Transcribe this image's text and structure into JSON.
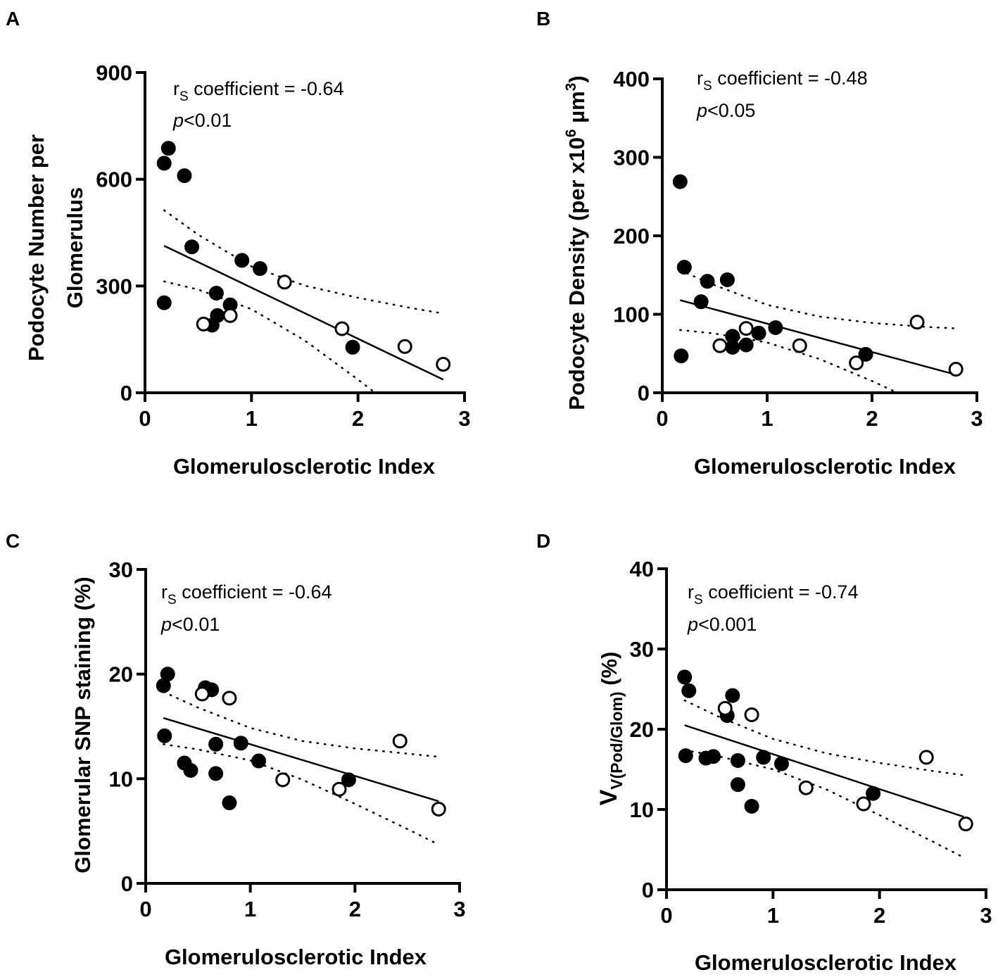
{
  "chart_data": [
    {
      "panel": "A",
      "type": "scatter",
      "xlabel": "Glomerulosclerotic Index",
      "ylabel_lines": [
        "Podocyte Number per",
        "Glomerulus"
      ],
      "xlim": [
        0,
        3
      ],
      "ylim": [
        0,
        900
      ],
      "xticks": [
        "0",
        "1",
        "2",
        "3"
      ],
      "xtick_values": [
        0,
        1,
        2,
        3
      ],
      "yticks": [
        "0",
        "300",
        "600",
        "900"
      ],
      "ytick_values": [
        0,
        300,
        600,
        900
      ],
      "annotation": {
        "r": "r",
        "r_sub": "S",
        "coef": " coefficient = -0.64",
        "p": "p",
        "p_value": "<0.01"
      },
      "series": [
        {
          "name": "filled",
          "fill": "#000000",
          "points": [
            [
              0.22,
              687
            ],
            [
              0.18,
              645
            ],
            [
              0.37,
              610
            ],
            [
              0.44,
              410
            ],
            [
              0.91,
              372
            ],
            [
              1.08,
              349
            ],
            [
              0.67,
              280
            ],
            [
              0.18,
              253
            ],
            [
              0.8,
              247
            ],
            [
              0.68,
              217
            ],
            [
              0.63,
              190
            ],
            [
              1.95,
              128
            ]
          ]
        },
        {
          "name": "open",
          "fill": "#ffffff",
          "points": [
            [
              0.55,
              193
            ],
            [
              0.8,
              217
            ],
            [
              1.31,
              311
            ],
            [
              1.85,
              180
            ],
            [
              2.44,
              130
            ],
            [
              2.8,
              80
            ]
          ]
        }
      ],
      "regression": {
        "x": [
          0.18,
          2.8
        ],
        "y": [
          413,
          37
        ]
      },
      "confidence_band": {
        "x": [
          0.18,
          0.5,
          1.0,
          1.5,
          2.0,
          2.5,
          2.8
        ],
        "upper": [
          513,
          444,
          355,
          301,
          267,
          238,
          223
        ],
        "lower": [
          313,
          290,
          235,
          147,
          37,
          -78,
          -149
        ]
      }
    },
    {
      "panel": "B",
      "type": "scatter",
      "xlabel": "Glomerulosclerotic Index",
      "ylabel_parts": {
        "main": "Podocyte Density (per x10",
        "sup1": "6",
        "unit": " µm",
        "sup2": "3",
        "close": ")"
      },
      "xlim": [
        0,
        3
      ],
      "ylim": [
        0,
        400
      ],
      "xticks": [
        "0",
        "1",
        "2",
        "3"
      ],
      "xtick_values": [
        0,
        1,
        2,
        3
      ],
      "yticks": [
        "0",
        "100",
        "200",
        "300",
        "400"
      ],
      "ytick_values": [
        0,
        100,
        200,
        300,
        400
      ],
      "annotation": {
        "r": "r",
        "r_sub": "S",
        "coef": " coefficient = -0.48",
        "p": "p",
        "p_value": "<0.05"
      },
      "series": [
        {
          "name": "filled",
          "fill": "#000000",
          "points": [
            [
              0.17,
              269
            ],
            [
              0.21,
              160
            ],
            [
              0.43,
              142
            ],
            [
              0.62,
              144
            ],
            [
              0.37,
              116
            ],
            [
              0.18,
              47
            ],
            [
              0.67,
              72
            ],
            [
              0.67,
              58
            ],
            [
              0.8,
              61
            ],
            [
              0.92,
              76
            ],
            [
              1.08,
              83
            ],
            [
              1.94,
              49
            ]
          ]
        },
        {
          "name": "open",
          "fill": "#ffffff",
          "points": [
            [
              0.55,
              60
            ],
            [
              0.8,
              82
            ],
            [
              1.31,
              60
            ],
            [
              1.85,
              38
            ],
            [
              2.43,
              90
            ],
            [
              2.8,
              30
            ]
          ]
        }
      ],
      "regression": {
        "x": [
          0.17,
          2.8
        ],
        "y": [
          118,
          23
        ]
      },
      "confidence_band": {
        "x": [
          0.17,
          0.5,
          1.0,
          1.5,
          2.0,
          2.5,
          2.8
        ],
        "upper": [
          156,
          137,
          112,
          97,
          89,
          84,
          82
        ],
        "lower": [
          80,
          75.5,
          64,
          43,
          15,
          -16,
          -36
        ]
      }
    },
    {
      "panel": "C",
      "type": "scatter",
      "xlabel": "Glomerulosclerotic Index",
      "ylabel": "Glomerular SNP staining (%)",
      "xlim": [
        0,
        3
      ],
      "ylim": [
        0,
        30
      ],
      "xticks": [
        "0",
        "1",
        "2",
        "3"
      ],
      "xtick_values": [
        0,
        1,
        2,
        3
      ],
      "yticks": [
        "0",
        "10",
        "20",
        "30"
      ],
      "ytick_values": [
        0,
        10,
        20,
        30
      ],
      "annotation": {
        "r": "r",
        "r_sub": "S",
        "coef": " coefficient = -0.64",
        "p": "p",
        "p_value": "<0.01"
      },
      "series": [
        {
          "name": "filled",
          "fill": "#000000",
          "points": [
            [
              0.21,
              20.0
            ],
            [
              0.17,
              18.9
            ],
            [
              0.57,
              18.7
            ],
            [
              0.63,
              18.5
            ],
            [
              0.18,
              14.1
            ],
            [
              0.67,
              13.3
            ],
            [
              0.91,
              13.4
            ],
            [
              0.37,
              11.5
            ],
            [
              0.43,
              10.8
            ],
            [
              1.08,
              11.7
            ],
            [
              0.67,
              10.5
            ],
            [
              0.8,
              7.7
            ],
            [
              1.94,
              9.9
            ]
          ]
        },
        {
          "name": "open",
          "fill": "#ffffff",
          "points": [
            [
              0.54,
              18.1
            ],
            [
              0.8,
              17.7
            ],
            [
              1.31,
              9.9
            ],
            [
              2.43,
              13.6
            ],
            [
              1.85,
              9.0
            ],
            [
              2.8,
              7.1
            ]
          ]
        }
      ],
      "regression": {
        "x": [
          0.17,
          2.8
        ],
        "y": [
          15.8,
          7.85
        ]
      },
      "confidence_band": {
        "x": [
          0.17,
          0.5,
          1.0,
          1.5,
          2.0,
          2.5,
          2.8
        ],
        "upper": [
          18.3,
          16.8,
          14.85,
          13.6,
          12.9,
          12.4,
          12.1
        ],
        "lower": [
          13.3,
          12.8,
          11.75,
          9.9,
          7.6,
          5.2,
          3.7
        ]
      }
    },
    {
      "panel": "D",
      "type": "scatter",
      "xlabel": "Glomerulosclerotic Index",
      "ylabel_parts": {
        "main": "V",
        "sub": "V(Pod/Glom)",
        "rest": " (%)"
      },
      "xlim": [
        0,
        3
      ],
      "ylim": [
        0,
        40
      ],
      "xticks": [
        "0",
        "1",
        "2",
        "3"
      ],
      "xtick_values": [
        0,
        1,
        2,
        3
      ],
      "yticks": [
        "0",
        "10",
        "20",
        "30",
        "40"
      ],
      "ytick_values": [
        0,
        10,
        20,
        30,
        40
      ],
      "annotation": {
        "r": "r",
        "r_sub": "S",
        "coef": " coefficient = -0.74",
        "p": "p",
        "p_value": "<0.001"
      },
      "series": [
        {
          "name": "filled",
          "fill": "#000000",
          "points": [
            [
              0.17,
              26.5
            ],
            [
              0.21,
              24.8
            ],
            [
              0.62,
              24.2
            ],
            [
              0.57,
              21.7
            ],
            [
              0.18,
              16.7
            ],
            [
              0.37,
              16.4
            ],
            [
              0.44,
              16.6
            ],
            [
              0.67,
              16.1
            ],
            [
              0.91,
              16.5
            ],
            [
              1.08,
              15.7
            ],
            [
              0.67,
              13.1
            ],
            [
              0.8,
              10.4
            ],
            [
              1.94,
              12.0
            ]
          ]
        },
        {
          "name": "open",
          "fill": "#ffffff",
          "points": [
            [
              0.55,
              22.6
            ],
            [
              0.8,
              21.8
            ],
            [
              1.31,
              12.7
            ],
            [
              2.44,
              16.5
            ],
            [
              1.85,
              10.7
            ],
            [
              2.81,
              8.2
            ]
          ]
        }
      ],
      "regression": {
        "x": [
          0.17,
          2.79
        ],
        "y": [
          20.5,
          9.1
        ]
      },
      "confidence_band": {
        "x": [
          0.17,
          0.5,
          1.0,
          1.5,
          2.0,
          2.5,
          2.8
        ],
        "upper": [
          23.6,
          21.5,
          18.8,
          17.0,
          15.8,
          14.8,
          14.25
        ],
        "lower": [
          17.4,
          16.6,
          15.0,
          12.5,
          9.3,
          6.0,
          3.95
        ]
      }
    }
  ]
}
